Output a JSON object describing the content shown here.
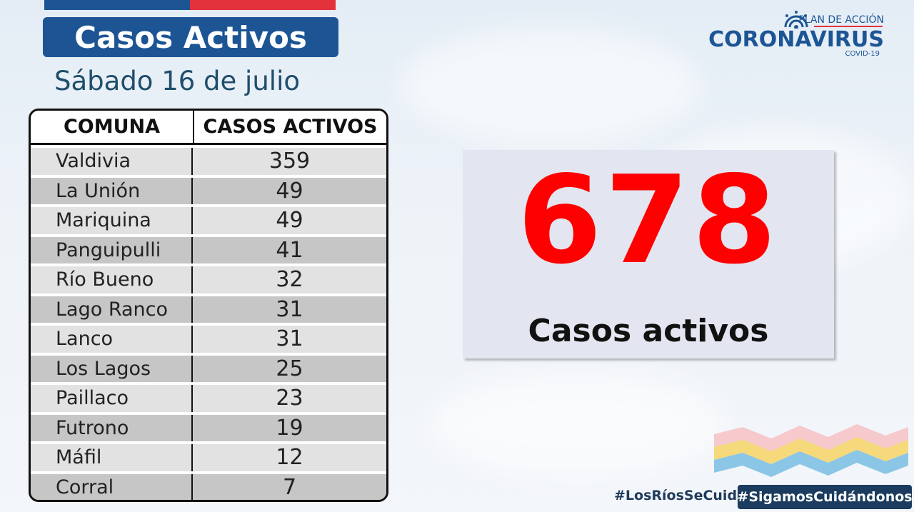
{
  "header": {
    "title": "Casos Activos",
    "date": "Sábado 16 de julio"
  },
  "logo": {
    "top_text": "PLAN DE ACCIÓN",
    "main_text": "CORONAVIRUS",
    "sub_text": "COVID-19"
  },
  "table": {
    "headers": [
      "COMUNA",
      "CASOS ACTIVOS"
    ],
    "rows": [
      {
        "comuna": "Valdivia",
        "casos": "359"
      },
      {
        "comuna": "La Unión",
        "casos": "49"
      },
      {
        "comuna": "Mariquina",
        "casos": "49"
      },
      {
        "comuna": "Panguipulli",
        "casos": "41"
      },
      {
        "comuna": "Río Bueno",
        "casos": "32"
      },
      {
        "comuna": "Lago Ranco",
        "casos": "31"
      },
      {
        "comuna": "Lanco",
        "casos": "31"
      },
      {
        "comuna": "Los Lagos",
        "casos": "25"
      },
      {
        "comuna": "Paillaco",
        "casos": "23"
      },
      {
        "comuna": "Futrono",
        "casos": "19"
      },
      {
        "comuna": "Máfil",
        "casos": "12"
      },
      {
        "comuna": "Corral",
        "casos": "7"
      }
    ]
  },
  "total": {
    "value": "678",
    "label": "Casos activos"
  },
  "hashtags": {
    "tag1": "#LosRíosSeCuida",
    "tag2": "#SigamosCuidándonos"
  },
  "colors": {
    "brand_blue": "#1d5594",
    "brand_red": "#e4323c",
    "total_red": "#ff0000"
  }
}
